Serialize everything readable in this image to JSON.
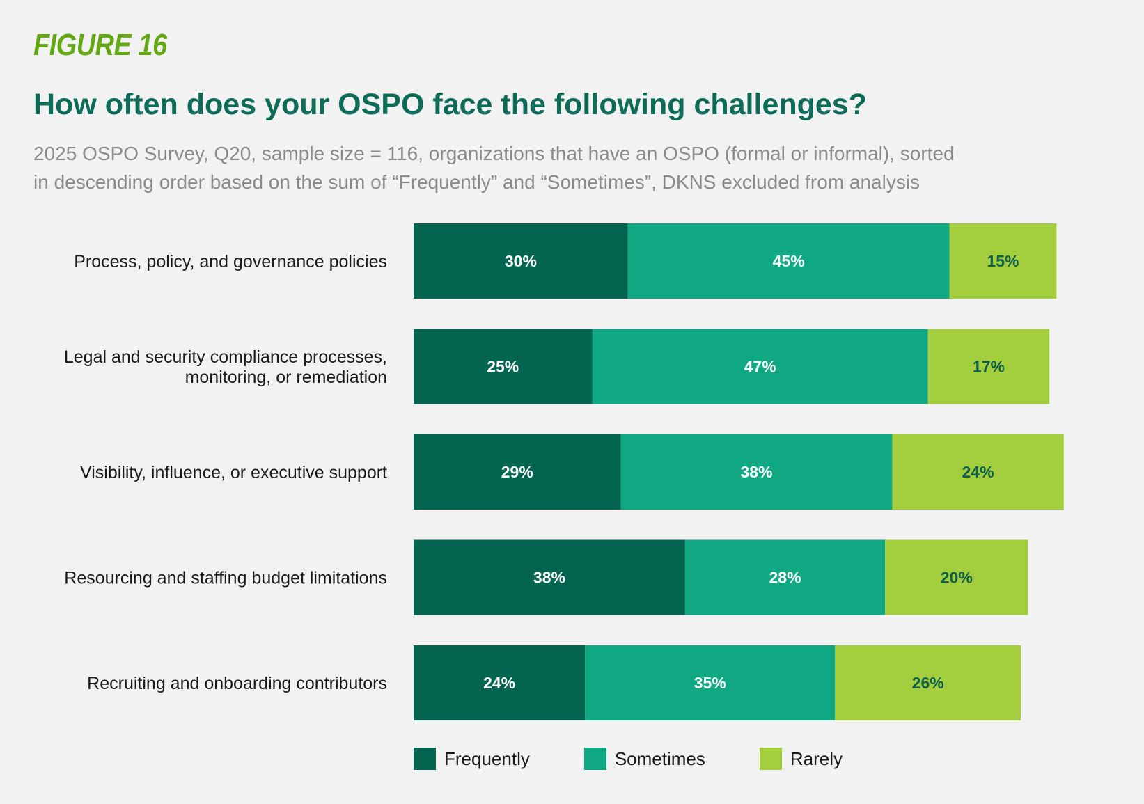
{
  "header": {
    "figure_label": "FIGURE 16",
    "title": "How often does your OSPO face the following challenges?",
    "subtitle_lines": [
      "2025 OSPO Survey, Q20, sample size = 116, organizations that have an OSPO (formal or informal), sorted",
      "in descending order based on the sum of “Frequently” and “Sometimes”, DKNS excluded from analysis"
    ]
  },
  "colors": {
    "background": "#f2f2f2",
    "frequently": "#03654f",
    "sometimes": "#0fa883",
    "rarely": "#a3cf3e",
    "label_dark": "#0d5e4a",
    "label_light": "#ffffff"
  },
  "chart_data": {
    "type": "bar",
    "orientation": "horizontal",
    "stacked": true,
    "categories": [
      [
        "Process, policy, and governance policies"
      ],
      [
        "Legal and security compliance processes,",
        "monitoring, or remediation"
      ],
      [
        "Visibility, influence, or executive support"
      ],
      [
        "Resourcing and staffing budget limitations"
      ],
      [
        "Recruiting and onboarding contributors"
      ]
    ],
    "series": [
      {
        "name": "Frequently",
        "values": [
          30,
          25,
          29,
          38,
          24
        ],
        "labels": [
          "30%",
          "25%",
          "29%",
          "38%",
          "24%"
        ]
      },
      {
        "name": "Sometimes",
        "values": [
          45,
          47,
          38,
          28,
          35
        ],
        "labels": [
          "45%",
          "47%",
          "38%",
          "28%",
          "35%"
        ]
      },
      {
        "name": "Rarely",
        "values": [
          15,
          17,
          24,
          20,
          26
        ],
        "labels": [
          "15%",
          "17%",
          "24%",
          "20%",
          "26%"
        ]
      }
    ],
    "xlim": [
      0,
      100
    ],
    "grid": false,
    "legend_position": "bottom"
  }
}
